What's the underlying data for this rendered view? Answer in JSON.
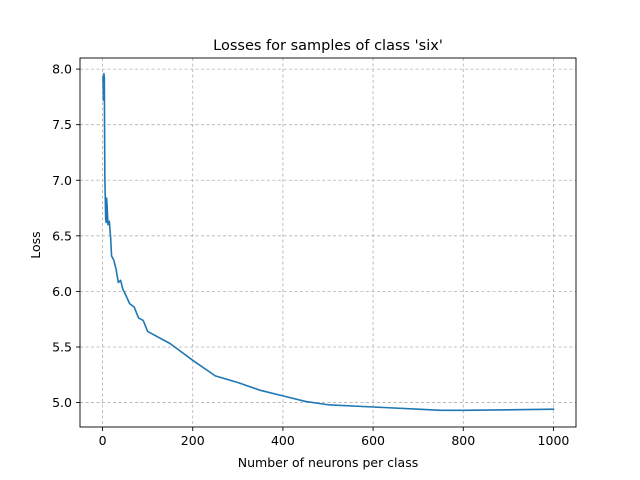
{
  "chart_data": {
    "type": "line",
    "title": "Losses for samples of class 'six'",
    "xlabel": "Number of neurons per class",
    "ylabel": "Loss",
    "xlim": [
      -50,
      1050
    ],
    "ylim": [
      4.78,
      8.1
    ],
    "grid": true,
    "x_ticks": [
      0,
      200,
      400,
      600,
      800,
      1000
    ],
    "y_ticks": [
      5.0,
      5.5,
      6.0,
      6.5,
      7.0,
      7.5,
      8.0
    ],
    "x_tick_labels": [
      "0",
      "200",
      "400",
      "600",
      "800",
      "1000"
    ],
    "y_tick_labels": [
      "5.0",
      "5.5",
      "6.0",
      "6.5",
      "7.0",
      "7.5",
      "8.0"
    ],
    "series": [
      {
        "color": "#1f77b4",
        "x": [
          1,
          2,
          3,
          4,
          5,
          6,
          7,
          8,
          9,
          10,
          12,
          15,
          18,
          20,
          25,
          30,
          35,
          40,
          45,
          50,
          60,
          70,
          75,
          80,
          90,
          100,
          150,
          200,
          250,
          300,
          350,
          400,
          450,
          500,
          600,
          700,
          750,
          800,
          900,
          1000
        ],
        "y": [
          7.93,
          7.72,
          7.96,
          7.92,
          7.05,
          6.85,
          6.65,
          6.62,
          6.84,
          6.78,
          6.6,
          6.63,
          6.48,
          6.32,
          6.28,
          6.2,
          6.08,
          6.1,
          6.02,
          5.98,
          5.89,
          5.86,
          5.81,
          5.76,
          5.74,
          5.64,
          5.53,
          5.38,
          5.24,
          5.18,
          5.11,
          5.06,
          5.01,
          4.98,
          4.96,
          4.94,
          4.93,
          4.93,
          4.935,
          4.94
        ]
      }
    ]
  }
}
